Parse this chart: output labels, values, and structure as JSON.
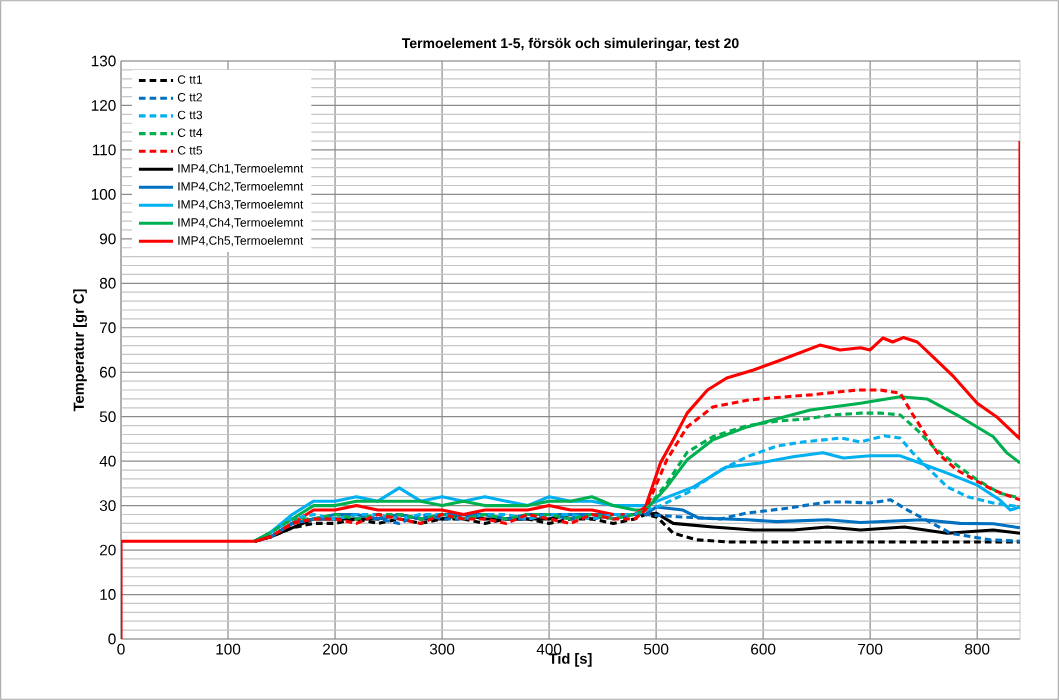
{
  "chart_data": {
    "type": "line",
    "title": "Termoelement 1-5, försök och simuleringar, test 20",
    "xlabel": "Tid [s]",
    "ylabel": "Temperatur [gr C]",
    "xlim": [
      0,
      840
    ],
    "xticks": [
      0,
      100,
      200,
      300,
      400,
      500,
      600,
      700,
      800
    ],
    "ylim": [
      0,
      130
    ],
    "yticks": [
      0,
      10,
      20,
      30,
      40,
      50,
      60,
      70,
      80,
      90,
      100,
      110,
      120,
      130
    ],
    "grid": true,
    "legend": "top left",
    "marker": "none",
    "series": [
      {
        "name": "C tt1",
        "color": "#000000",
        "line_style": "dashed",
        "x": [
          125,
          140,
          160,
          180,
          200,
          220,
          240,
          260,
          280,
          300,
          320,
          340,
          360,
          380,
          400,
          420,
          440,
          460,
          480,
          490,
          501,
          516,
          538,
          569,
          609,
          700,
          760,
          840
        ],
        "values": [
          22,
          23,
          25,
          26,
          26,
          27,
          26,
          27,
          26,
          27,
          27,
          26,
          27,
          27,
          26,
          27,
          27,
          26,
          27,
          28,
          27.4,
          23.8,
          22.3,
          21.8,
          21.8,
          21.8,
          21.8,
          21.8
        ]
      },
      {
        "name": "C tt2",
        "color": "#0070c0",
        "line_style": "dashed",
        "x": [
          140,
          160,
          180,
          200,
          220,
          240,
          260,
          280,
          300,
          320,
          340,
          360,
          380,
          400,
          420,
          440,
          460,
          480,
          490,
          520,
          560,
          584,
          622,
          660,
          678,
          700,
          719,
          735,
          775,
          812,
          840
        ],
        "values": [
          23,
          26,
          27,
          27,
          28,
          27,
          26,
          28,
          27,
          27,
          28,
          27,
          27,
          28,
          27,
          28,
          27,
          28,
          28,
          27.5,
          27,
          28.3,
          29.4,
          30.8,
          30.8,
          30.6,
          31.3,
          29,
          23.8,
          22.3,
          22
        ]
      },
      {
        "name": "C tt3",
        "color": "#00b0f0",
        "line_style": "dashed",
        "x": [
          140,
          160,
          180,
          200,
          220,
          240,
          260,
          280,
          300,
          320,
          340,
          360,
          380,
          400,
          420,
          440,
          460,
          480,
          490,
          504,
          530,
          560,
          585,
          613,
          637,
          673,
          691,
          713,
          728,
          740,
          756,
          772,
          791,
          815,
          840
        ],
        "values": [
          24,
          27,
          28,
          27,
          28,
          28,
          27,
          28,
          28,
          27,
          28,
          28,
          27,
          28,
          28,
          27,
          28,
          28,
          29,
          30,
          33,
          38,
          41,
          43.4,
          44.3,
          45.2,
          44.3,
          45.7,
          45.2,
          41.8,
          38,
          34.2,
          32,
          30.6,
          29.7
        ]
      },
      {
        "name": "C tt4",
        "color": "#00b050",
        "line_style": "dashed",
        "x": [
          125,
          140,
          160,
          180,
          200,
          220,
          240,
          260,
          280,
          300,
          320,
          340,
          360,
          380,
          400,
          420,
          440,
          460,
          480,
          490,
          510,
          529,
          553,
          585,
          613,
          640,
          665,
          691,
          710,
          728,
          744,
          759,
          778,
          800,
          821,
          840
        ],
        "values": [
          22,
          24,
          27,
          27,
          28,
          27,
          28,
          28,
          27,
          28,
          27,
          28,
          27,
          28,
          28,
          27,
          28,
          27,
          28,
          29,
          35,
          42,
          45.5,
          48,
          49,
          49.5,
          50.4,
          50.8,
          50.8,
          50.4,
          47,
          43.2,
          39.6,
          35.8,
          32.8,
          31.7
        ]
      },
      {
        "name": "C tt5",
        "color": "#ff0000",
        "line_style": "dashed",
        "x": [
          125,
          140,
          160,
          180,
          200,
          220,
          240,
          260,
          280,
          300,
          320,
          340,
          360,
          380,
          400,
          420,
          440,
          460,
          480,
          490,
          510,
          529,
          553,
          585,
          607,
          644,
          688,
          709,
          728,
          740,
          763,
          781,
          815,
          840
        ],
        "values": [
          22,
          23,
          26,
          27,
          27,
          26,
          28,
          27,
          26,
          28,
          27,
          27,
          26,
          28,
          27,
          26,
          28,
          27,
          27,
          29,
          40.3,
          47.7,
          52.2,
          53.7,
          54.2,
          54.9,
          56,
          56,
          55.3,
          50.4,
          41.8,
          38,
          33.5,
          31.3
        ]
      },
      {
        "name": "IMP4,Ch1,Termoelemnt",
        "color": "#000000",
        "line_style": "solid",
        "x": [
          125,
          140,
          160,
          180,
          200,
          220,
          240,
          260,
          280,
          300,
          320,
          340,
          360,
          380,
          400,
          420,
          440,
          460,
          480,
          490,
          500,
          516,
          553,
          591,
          628,
          660,
          691,
          732,
          772,
          815,
          840
        ],
        "values": [
          22,
          23,
          25,
          27,
          27,
          27,
          27,
          28,
          27,
          27,
          28,
          27,
          27,
          27,
          27,
          28,
          27,
          28,
          28,
          28,
          28.3,
          26,
          25.2,
          24.5,
          24.5,
          25.2,
          24.5,
          25.2,
          23.8,
          24.5,
          23.8
        ]
      },
      {
        "name": "IMP4,Ch2,Termoelemnt",
        "color": "#0070c0",
        "line_style": "solid",
        "x": [
          125,
          140,
          160,
          180,
          200,
          220,
          240,
          260,
          280,
          300,
          320,
          340,
          360,
          380,
          400,
          420,
          440,
          460,
          480,
          490,
          500,
          525,
          540,
          585,
          613,
          660,
          691,
          749,
          784,
          815,
          840
        ],
        "values": [
          22,
          23,
          26,
          27,
          28,
          28,
          27,
          28,
          27,
          28,
          28,
          28,
          27,
          28,
          28,
          28,
          28,
          28,
          28,
          28,
          29.7,
          29,
          27.2,
          26.8,
          26.4,
          26.8,
          26.2,
          26.8,
          26,
          25.9,
          25
        ]
      },
      {
        "name": "IMP4,Ch3,Termoelemnt",
        "color": "#00b0f0",
        "line_style": "solid",
        "x": [
          125,
          140,
          160,
          180,
          200,
          220,
          240,
          260,
          280,
          300,
          320,
          340,
          360,
          380,
          400,
          420,
          440,
          460,
          480,
          490,
          504,
          535,
          566,
          597,
          628,
          656,
          675,
          700,
          728,
          744,
          772,
          800,
          821,
          831,
          840
        ],
        "values": [
          22,
          24,
          28,
          31,
          31,
          32,
          31,
          34,
          31,
          32,
          31,
          32,
          31,
          30,
          32,
          31,
          31,
          30,
          30,
          30,
          31.3,
          34.2,
          38.7,
          39.6,
          41,
          41.9,
          40.7,
          41.2,
          41.2,
          39.8,
          37.3,
          34.6,
          31.3,
          29,
          29.7
        ]
      },
      {
        "name": "IMP4,Ch4,Termoelemnt",
        "color": "#00b050",
        "line_style": "solid",
        "x": [
          125,
          140,
          160,
          180,
          200,
          220,
          240,
          260,
          280,
          300,
          320,
          340,
          360,
          380,
          400,
          420,
          440,
          460,
          480,
          490,
          510,
          529,
          553,
          585,
          616,
          644,
          691,
          728,
          753,
          784,
          815,
          828,
          840
        ],
        "values": [
          22,
          24,
          27,
          30,
          30,
          31,
          31,
          31,
          31,
          30,
          31,
          30,
          30,
          30,
          31,
          31,
          32,
          30,
          29,
          29,
          34.2,
          40.3,
          44.8,
          47.7,
          49.7,
          51.5,
          53,
          54.5,
          54,
          50,
          45.5,
          41.8,
          39.6
        ]
      },
      {
        "name": "IMP4,Ch5,Termoelemnt",
        "color": "#ff0000",
        "line_style": "solid",
        "x": [
          0,
          0,
          20,
          60,
          100,
          125,
          140,
          160,
          180,
          200,
          220,
          240,
          260,
          280,
          300,
          320,
          340,
          360,
          380,
          400,
          420,
          440,
          460,
          480,
          490,
          504,
          516,
          529,
          548,
          566,
          591,
          616,
          653,
          672,
          691,
          700,
          712,
          721,
          731,
          744,
          759,
          778,
          800,
          818,
          840,
          840
        ],
        "values": [
          0,
          22,
          22,
          22,
          22,
          22,
          23,
          26,
          29,
          29,
          30,
          29,
          29,
          29,
          29,
          28,
          29,
          29,
          29,
          30,
          29,
          29,
          28,
          28,
          29.7,
          39.6,
          44.8,
          50.8,
          56,
          58.7,
          60.5,
          62.7,
          66.1,
          65,
          65.5,
          65,
          67.7,
          66.8,
          67.8,
          66.8,
          63.4,
          59,
          53,
          50,
          45,
          112
        ]
      }
    ]
  }
}
